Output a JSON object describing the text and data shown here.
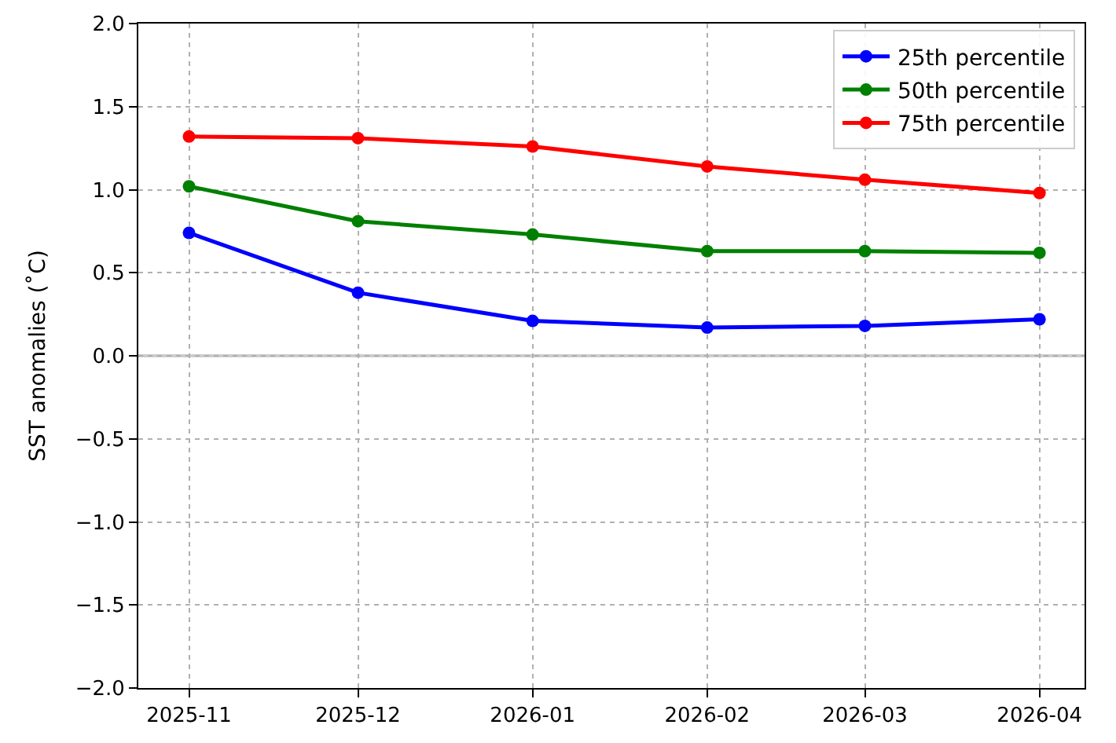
{
  "chart_data": {
    "type": "line",
    "ylabel": "SST anomalies (˚C)",
    "x": [
      "2025-11",
      "2025-12",
      "2026-01",
      "2026-02",
      "2026-03",
      "2026-04"
    ],
    "series": [
      {
        "name": "25th percentile",
        "color": "#0000ff",
        "values": [
          0.74,
          0.38,
          0.21,
          0.17,
          0.18,
          0.22
        ]
      },
      {
        "name": "50th percentile",
        "color": "#008000",
        "values": [
          1.02,
          0.81,
          0.73,
          0.63,
          0.63,
          0.62
        ]
      },
      {
        "name": "75th percentile",
        "color": "#ff0000",
        "values": [
          1.32,
          1.31,
          1.26,
          1.14,
          1.06,
          0.98
        ]
      }
    ],
    "xlim": [
      "2025-10-23",
      "2026-04-09"
    ],
    "xticks": [
      {
        "value": "2025-11",
        "label": "2025-11"
      },
      {
        "value": "2025-12",
        "label": "2025-12"
      },
      {
        "value": "2026-01",
        "label": "2026-01"
      },
      {
        "value": "2026-02",
        "label": "2026-02"
      },
      {
        "value": "2026-03",
        "label": "2026-03"
      },
      {
        "value": "2026-04",
        "label": "2026-04"
      }
    ],
    "ylim": [
      -2.0,
      2.0
    ],
    "yticks": [
      {
        "value": -2.0,
        "label": "−2.0"
      },
      {
        "value": -1.5,
        "label": "−1.5"
      },
      {
        "value": -1.0,
        "label": "−1.0"
      },
      {
        "value": -0.5,
        "label": "−0.5"
      },
      {
        "value": 0.0,
        "label": "0.0"
      },
      {
        "value": 0.5,
        "label": "0.5"
      },
      {
        "value": 1.0,
        "label": "1.0"
      },
      {
        "value": 1.5,
        "label": "1.5"
      },
      {
        "value": 2.0,
        "label": "2.0"
      }
    ],
    "ref_lines": [
      {
        "axis": "y",
        "value": 0,
        "color": "#cccccc",
        "line_style": "solid"
      }
    ],
    "grid": true,
    "legend": "top right",
    "marker": "circle",
    "line_style": "solid"
  }
}
